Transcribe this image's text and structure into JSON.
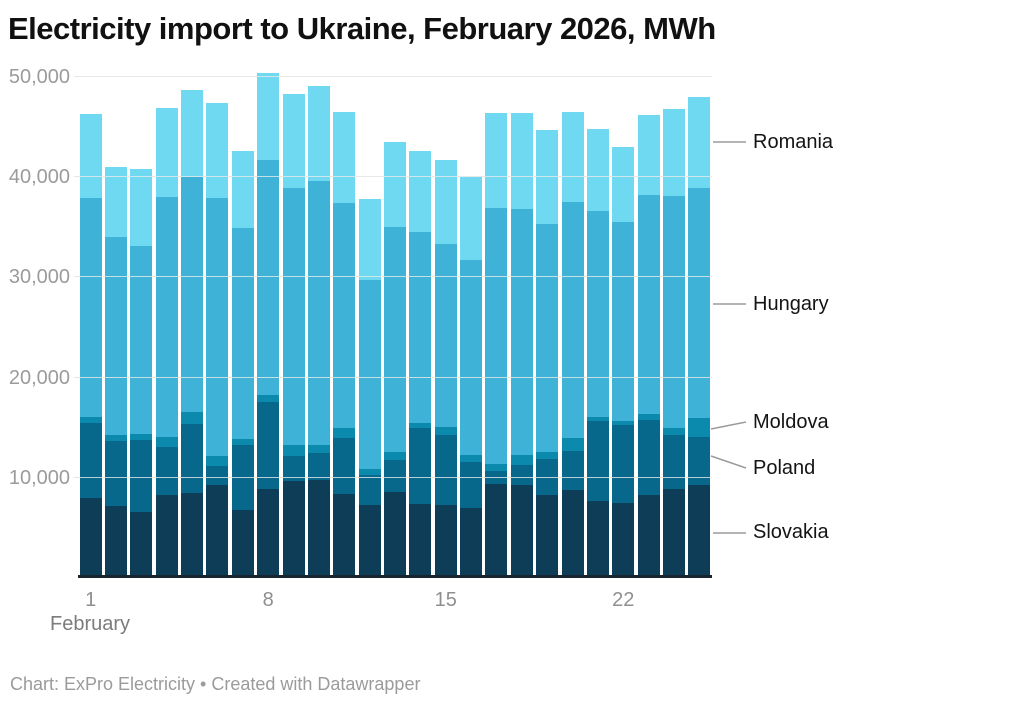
{
  "chart_data": {
    "type": "bar",
    "stacked": true,
    "title": "Electricity import to Ukraine, February 2026, MWh",
    "xlabel": "February",
    "ylabel": "MWh",
    "x": [
      1,
      2,
      3,
      4,
      5,
      6,
      7,
      8,
      9,
      10,
      11,
      12,
      13,
      14,
      15,
      16,
      17,
      18,
      19,
      20,
      21,
      22,
      23,
      24,
      25
    ],
    "x_ticks": [
      1,
      8,
      15,
      22
    ],
    "ylim": [
      0,
      50500
    ],
    "yticks": [
      10000,
      20000,
      30000,
      40000,
      50000
    ],
    "grid": true,
    "legend_position": "right",
    "series": [
      {
        "name": "Slovakia",
        "color": "#0e3d58",
        "values": [
          7900,
          7100,
          6500,
          8200,
          8400,
          9200,
          6700,
          8800,
          9600,
          9700,
          8300,
          7200,
          8500,
          7300,
          7200,
          6900,
          9300,
          9200,
          8200,
          8700,
          7600,
          7400,
          8200,
          8800,
          9200
        ]
      },
      {
        "name": "Poland",
        "color": "#07688c",
        "values": [
          7500,
          6500,
          7200,
          4800,
          6900,
          1900,
          6500,
          8700,
          2500,
          2700,
          5600,
          3000,
          3200,
          7600,
          7000,
          4600,
          1300,
          2000,
          3600,
          3900,
          8000,
          7800,
          7500,
          5400,
          4800
        ]
      },
      {
        "name": "Moldova",
        "color": "#0b8aad",
        "values": [
          600,
          600,
          600,
          1000,
          1200,
          1000,
          600,
          700,
          1100,
          800,
          1000,
          600,
          800,
          500,
          800,
          700,
          700,
          1000,
          700,
          1300,
          400,
          400,
          600,
          700,
          1900
        ]
      },
      {
        "name": "Hungary",
        "color": "#3fb2d7",
        "values": [
          21800,
          19700,
          18700,
          23900,
          23400,
          25700,
          21000,
          23400,
          25600,
          26300,
          22400,
          18800,
          22400,
          19000,
          18200,
          19400,
          25500,
          24500,
          22700,
          23500,
          20500,
          19800,
          21800,
          23100,
          22900
        ]
      },
      {
        "name": "Romania",
        "color": "#70d9f2",
        "values": [
          8400,
          7000,
          7700,
          8900,
          8700,
          9500,
          7700,
          8700,
          9400,
          9500,
          9100,
          8100,
          8500,
          8100,
          8400,
          8300,
          9500,
          9600,
          9400,
          9000,
          8200,
          7500,
          8000,
          8700,
          9100
        ]
      }
    ]
  },
  "footer": {
    "text": "Chart: ExPro Electricity • Created with Datawrapper"
  }
}
